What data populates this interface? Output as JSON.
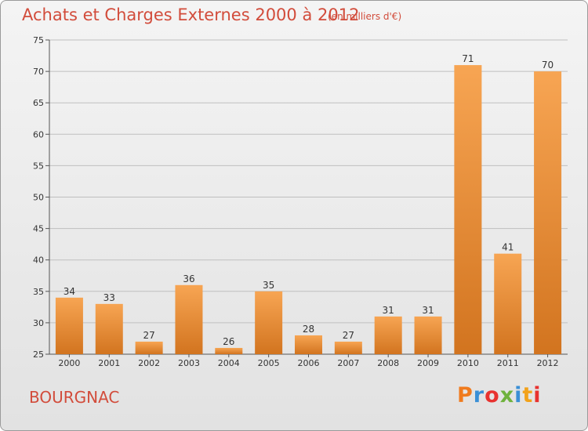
{
  "header": {
    "title": "Achats et Charges Externes 2000 à 2012",
    "subtitle": "(en milliers d'€)"
  },
  "footer": {
    "commune": "BOURGNAC",
    "logo": "Proxiti",
    "logo_colors": [
      "#f07b1e",
      "#3a8fd6",
      "#e8322f",
      "#6fb23c",
      "#3a8fd6",
      "#f2a21a",
      "#e8322f"
    ]
  },
  "colors": {
    "bar_light": "#f7a553",
    "bar_dark": "#d2741f",
    "grid": "#bfbfbf",
    "text_accent": "#d24c3b"
  },
  "chart_data": {
    "type": "bar",
    "title": "Achats et Charges Externes 2000 à 2012",
    "subtitle": "(en milliers d'€)",
    "xlabel": "",
    "ylabel": "",
    "categories": [
      "2000",
      "2001",
      "2002",
      "2003",
      "2004",
      "2005",
      "2006",
      "2007",
      "2008",
      "2009",
      "2010",
      "2011",
      "2012"
    ],
    "values": [
      34,
      33,
      27,
      36,
      26,
      35,
      28,
      27,
      31,
      31,
      71,
      41,
      70
    ],
    "ylim": [
      25,
      75
    ],
    "yticks": [
      25,
      30,
      35,
      40,
      45,
      50,
      55,
      60,
      65,
      70,
      75
    ],
    "grid": true,
    "data_labels": true
  }
}
